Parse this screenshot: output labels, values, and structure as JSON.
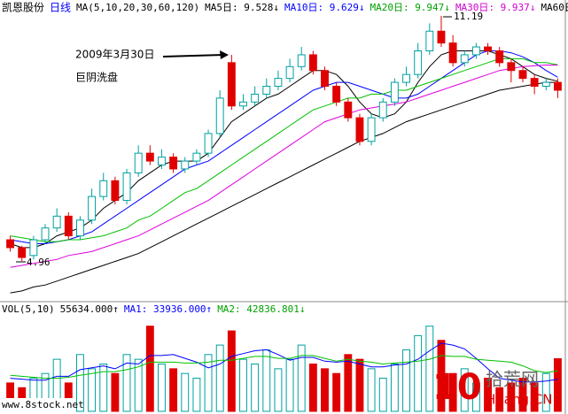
{
  "chart_data": [
    {
      "type": "candlestick",
      "header": [
        {
          "text": "凯恩股份",
          "color": "#000000"
        },
        {
          "text": "日线",
          "color": "#0000ff"
        },
        {
          "text": "MA(5,10,20,30,60,120)",
          "color": "#000000"
        },
        {
          "text": "MA5日: 9.528↓",
          "color": "#000000"
        },
        {
          "text": "MA10日: 9.629↓",
          "color": "#0000ff"
        },
        {
          "text": "MA20日: 9.947↓",
          "color": "#00a000"
        },
        {
          "text": "MA30日: 9.937↓",
          "color": "#d000d0"
        },
        {
          "text": "MA60日:",
          "color": "#000000"
        }
      ],
      "up_color": "#00a0a0",
      "down_color": "#e00000",
      "ylim": [
        3.95,
        11.48
      ],
      "open": [
        5.5,
        5.3,
        5.1,
        5.5,
        5.8,
        6.1,
        5.6,
        6.0,
        6.6,
        7.0,
        6.5,
        7.2,
        7.7,
        7.4,
        7.6,
        7.3,
        7.5,
        7.7,
        8.2,
        10.0,
        8.9,
        9.0,
        9.2,
        9.4,
        9.6,
        9.9,
        10.2,
        9.8,
        9.4,
        9.0,
        8.6,
        8.0,
        8.6,
        9.0,
        9.5,
        9.7,
        10.3,
        10.8,
        10.5,
        10.0,
        10.2,
        10.4,
        10.3,
        10.0,
        9.8,
        9.6,
        9.4,
        9.5
      ],
      "high": [
        5.6,
        5.35,
        5.6,
        5.9,
        6.3,
        6.2,
        6.1,
        6.8,
        7.2,
        7.1,
        7.3,
        7.9,
        7.9,
        7.8,
        7.7,
        7.6,
        7.8,
        8.3,
        9.3,
        10.2,
        9.2,
        9.4,
        9.6,
        9.8,
        10.1,
        10.4,
        10.3,
        9.9,
        9.5,
        9.1,
        8.7,
        8.7,
        9.1,
        9.6,
        9.9,
        10.5,
        11.0,
        11.19,
        10.7,
        10.3,
        10.5,
        10.5,
        10.4,
        10.1,
        9.9,
        9.7,
        9.6,
        9.6
      ],
      "low": [
        5.2,
        4.96,
        5.0,
        5.4,
        5.7,
        5.5,
        5.5,
        5.9,
        6.5,
        6.4,
        6.4,
        7.1,
        7.4,
        7.3,
        7.2,
        7.2,
        7.4,
        7.6,
        8.1,
        8.8,
        8.8,
        8.9,
        9.1,
        9.3,
        9.5,
        9.8,
        9.7,
        9.3,
        8.9,
        8.5,
        7.9,
        7.9,
        8.5,
        8.9,
        9.4,
        9.6,
        10.2,
        10.4,
        9.9,
        9.9,
        10.1,
        10.2,
        9.9,
        9.5,
        9.5,
        9.2,
        9.3,
        9.1
      ],
      "close": [
        5.3,
        5.05,
        5.5,
        5.8,
        6.1,
        5.6,
        6.0,
        6.6,
        7.0,
        6.5,
        7.2,
        7.7,
        7.5,
        7.6,
        7.3,
        7.5,
        7.7,
        8.2,
        9.1,
        8.9,
        9.0,
        9.2,
        9.4,
        9.6,
        9.9,
        10.2,
        9.8,
        9.4,
        9.0,
        8.6,
        8.0,
        8.6,
        9.0,
        9.5,
        9.7,
        10.3,
        10.8,
        10.5,
        10.0,
        10.2,
        10.4,
        10.3,
        10.0,
        9.8,
        9.6,
        9.4,
        9.5,
        9.3
      ],
      "series": [
        {
          "name": "MA5",
          "color": "#000000",
          "values": [
            5.4,
            5.3,
            5.3,
            5.4,
            5.6,
            5.7,
            5.8,
            6.0,
            6.3,
            6.5,
            6.7,
            7.0,
            7.2,
            7.4,
            7.5,
            7.5,
            7.5,
            7.7,
            8.1,
            8.5,
            8.7,
            8.9,
            9.1,
            9.2,
            9.4,
            9.6,
            9.8,
            9.8,
            9.7,
            9.4,
            9.0,
            8.7,
            8.6,
            8.7,
            9.0,
            9.5,
            9.9,
            10.2,
            10.3,
            10.3,
            10.3,
            10.3,
            10.2,
            10.1,
            9.9,
            9.7,
            9.6,
            9.528
          ]
        },
        {
          "name": "MA10",
          "color": "#0000ff",
          "values": [
            5.5,
            5.45,
            5.4,
            5.4,
            5.45,
            5.5,
            5.6,
            5.7,
            5.9,
            6.1,
            6.3,
            6.5,
            6.7,
            6.9,
            7.1,
            7.3,
            7.4,
            7.5,
            7.7,
            7.9,
            8.1,
            8.3,
            8.5,
            8.7,
            8.9,
            9.1,
            9.3,
            9.4,
            9.5,
            9.5,
            9.4,
            9.3,
            9.2,
            9.1,
            9.1,
            9.2,
            9.4,
            9.6,
            9.8,
            10.0,
            10.2,
            10.3,
            10.3,
            10.25,
            10.15,
            10.0,
            9.8,
            9.629
          ]
        },
        {
          "name": "MA20",
          "color": "#00c000",
          "values": [
            5.6,
            5.55,
            5.5,
            5.45,
            5.45,
            5.5,
            5.5,
            5.55,
            5.6,
            5.7,
            5.8,
            6.0,
            6.1,
            6.3,
            6.5,
            6.7,
            6.8,
            7.0,
            7.2,
            7.4,
            7.6,
            7.8,
            8.0,
            8.2,
            8.4,
            8.6,
            8.8,
            8.9,
            9.0,
            9.1,
            9.1,
            9.2,
            9.2,
            9.3,
            9.3,
            9.4,
            9.5,
            9.6,
            9.7,
            9.8,
            9.9,
            10.0,
            10.1,
            10.1,
            10.1,
            10.0,
            10.0,
            9.947
          ]
        },
        {
          "name": "MA30",
          "color": "#e000e0",
          "values": [
            4.8,
            4.85,
            4.9,
            4.95,
            5.0,
            5.1,
            5.15,
            5.2,
            5.3,
            5.4,
            5.5,
            5.6,
            5.75,
            5.9,
            6.05,
            6.2,
            6.35,
            6.5,
            6.7,
            6.9,
            7.1,
            7.3,
            7.5,
            7.7,
            7.9,
            8.1,
            8.3,
            8.5,
            8.6,
            8.7,
            8.8,
            8.85,
            8.9,
            8.95,
            9.0,
            9.1,
            9.2,
            9.3,
            9.4,
            9.5,
            9.6,
            9.7,
            9.8,
            9.85,
            9.9,
            9.92,
            9.94,
            9.937
          ]
        },
        {
          "name": "MA60",
          "color": "#000000",
          "values": [
            4.15,
            4.2,
            4.3,
            4.35,
            4.45,
            4.55,
            4.65,
            4.75,
            4.85,
            4.95,
            5.05,
            5.15,
            5.3,
            5.45,
            5.6,
            5.75,
            5.9,
            6.05,
            6.2,
            6.35,
            6.5,
            6.65,
            6.8,
            6.95,
            7.1,
            7.25,
            7.4,
            7.55,
            7.7,
            7.85,
            8.0,
            8.1,
            8.2,
            8.35,
            8.5,
            8.6,
            8.7,
            8.8,
            8.9,
            9.0,
            9.1,
            9.2,
            9.3,
            9.35,
            9.4,
            9.45,
            9.5,
            9.5
          ]
        }
      ],
      "annotations": [
        "2009年3月30日",
        "巨阴洗盘"
      ],
      "low_label": "4.96",
      "high_label": "11.19"
    },
    {
      "type": "volume",
      "header": [
        {
          "text": "VOL(5,10)",
          "color": "#000000"
        },
        {
          "text": "55634.000↑",
          "color": "#000000"
        },
        {
          "text": "MA1: 33936.000↑",
          "color": "#0000ff"
        },
        {
          "text": "MA2: 42836.801↓",
          "color": "#00a000"
        }
      ],
      "ylim": [
        0,
        100000
      ],
      "values": [
        30000,
        25000,
        35000,
        40000,
        55000,
        30000,
        60000,
        45000,
        50000,
        40000,
        60000,
        55000,
        90000,
        50000,
        45000,
        40000,
        35000,
        60000,
        70000,
        85000,
        55000,
        50000,
        65000,
        45000,
        55000,
        70000,
        50000,
        45000,
        40000,
        60000,
        55000,
        45000,
        35000,
        50000,
        65000,
        80000,
        90000,
        75000,
        40000,
        45000,
        30000,
        35000,
        25000,
        30000,
        35000,
        30000,
        40000,
        55634
      ],
      "series": [
        {
          "name": "MA1",
          "color": "#0000ff",
          "values": [
            35000,
            34000,
            33000,
            33000,
            37000,
            37000,
            44000,
            46000,
            48000,
            45000,
            51000,
            50000,
            59000,
            59000,
            60000,
            56000,
            52000,
            46000,
            50000,
            58000,
            61000,
            64000,
            65000,
            60000,
            54000,
            57000,
            57000,
            53000,
            52000,
            53000,
            50000,
            47000,
            47000,
            49000,
            50000,
            55000,
            64000,
            72000,
            70000,
            66000,
            56000,
            45000,
            35000,
            33000,
            31000,
            31000,
            32000,
            33936
          ]
        },
        {
          "name": "MA2",
          "color": "#00c000",
          "values": [
            38000,
            37000,
            36000,
            35000,
            35000,
            36000,
            38000,
            40000,
            42000,
            42000,
            44000,
            47000,
            52000,
            52000,
            52000,
            51000,
            51000,
            52000,
            54000,
            54000,
            56000,
            58000,
            58000,
            56000,
            56000,
            59000,
            59000,
            56000,
            53000,
            55000,
            53000,
            52000,
            50000,
            51000,
            52000,
            53000,
            55000,
            59000,
            58000,
            58000,
            55000,
            54000,
            53000,
            52000,
            48000,
            43000,
            41000,
            42836.801
          ]
        }
      ]
    }
  ],
  "watermarks": {
    "site": "www.8stock.net",
    "logo": "10",
    "brand": "拾荒网",
    "domain": "Huang.CN"
  }
}
